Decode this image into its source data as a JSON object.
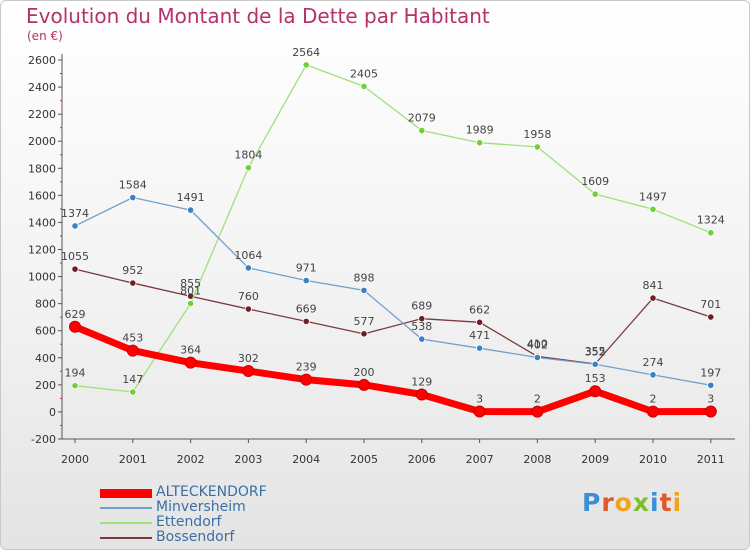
{
  "title": "Evolution du Montant de la Dette par Habitant",
  "subtitle": "(en €)",
  "logo_text": "Proxiti",
  "chart_data": {
    "type": "line",
    "title": "Evolution du Montant de la Dette par Habitant",
    "subtitle": "(en €)",
    "x": [
      "2000",
      "2001",
      "2002",
      "2003",
      "2004",
      "2005",
      "2006",
      "2007",
      "2008",
      "2009",
      "2010",
      "2011"
    ],
    "ylim": [
      -200,
      2600
    ],
    "yticks": [
      -200,
      0,
      200,
      400,
      600,
      800,
      1000,
      1200,
      1400,
      1600,
      1800,
      2000,
      2200,
      2400,
      2600
    ],
    "grid": false,
    "legend_position": "bottom-left",
    "series": [
      {
        "name": "ALTECKENDORF",
        "color": "#ff0000",
        "marker": "#ff0000",
        "values": [
          629,
          453,
          364,
          302,
          239,
          200,
          129,
          3,
          2,
          153,
          2,
          3
        ]
      },
      {
        "name": "Minversheim",
        "color": "#6fa0cf",
        "marker": "#3d7fc4",
        "values": [
          1374,
          1584,
          1491,
          1064,
          971,
          898,
          538,
          471,
          402,
          352,
          274,
          197
        ]
      },
      {
        "name": "Ettendorf",
        "color": "#a0e07a",
        "marker": "#6fcf3d",
        "values": [
          194,
          147,
          801,
          1804,
          2564,
          2405,
          2079,
          1989,
          1958,
          1609,
          1497,
          1324
        ]
      },
      {
        "name": "Bossendorf",
        "color": "#7a3a3f",
        "marker": "#6e1f26",
        "values": [
          1055,
          952,
          855,
          760,
          669,
          577,
          689,
          662,
          410,
          355,
          841,
          701
        ]
      }
    ]
  }
}
